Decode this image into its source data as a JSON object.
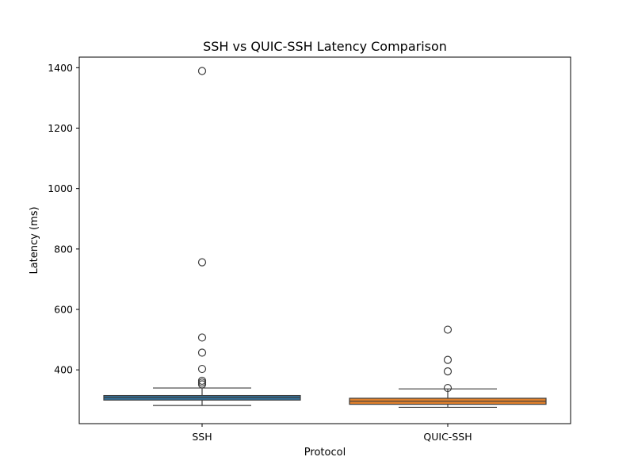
{
  "chart_data": {
    "type": "box",
    "title": "SSH vs QUIC-SSH Latency Comparison",
    "xlabel": "Protocol",
    "ylabel": "Latency (ms)",
    "categories": [
      "SSH",
      "QUIC-SSH"
    ],
    "ylim": [
      222,
      1435
    ],
    "yticks": [
      400,
      600,
      800,
      1000,
      1200,
      1400
    ],
    "grid": false,
    "series": [
      {
        "category": "SSH",
        "color": "#3274a1",
        "whisker_low": 282,
        "q1": 300,
        "median": 308,
        "q3": 315,
        "whisker_high": 340,
        "outliers": [
          352,
          358,
          364,
          403,
          457,
          507,
          756,
          1389
        ]
      },
      {
        "category": "QUIC-SSH",
        "color": "#e1812c",
        "whisker_low": 276,
        "q1": 286,
        "median": 296,
        "q3": 306,
        "whisker_high": 337,
        "outliers": [
          340,
          395,
          433,
          533
        ]
      }
    ]
  }
}
